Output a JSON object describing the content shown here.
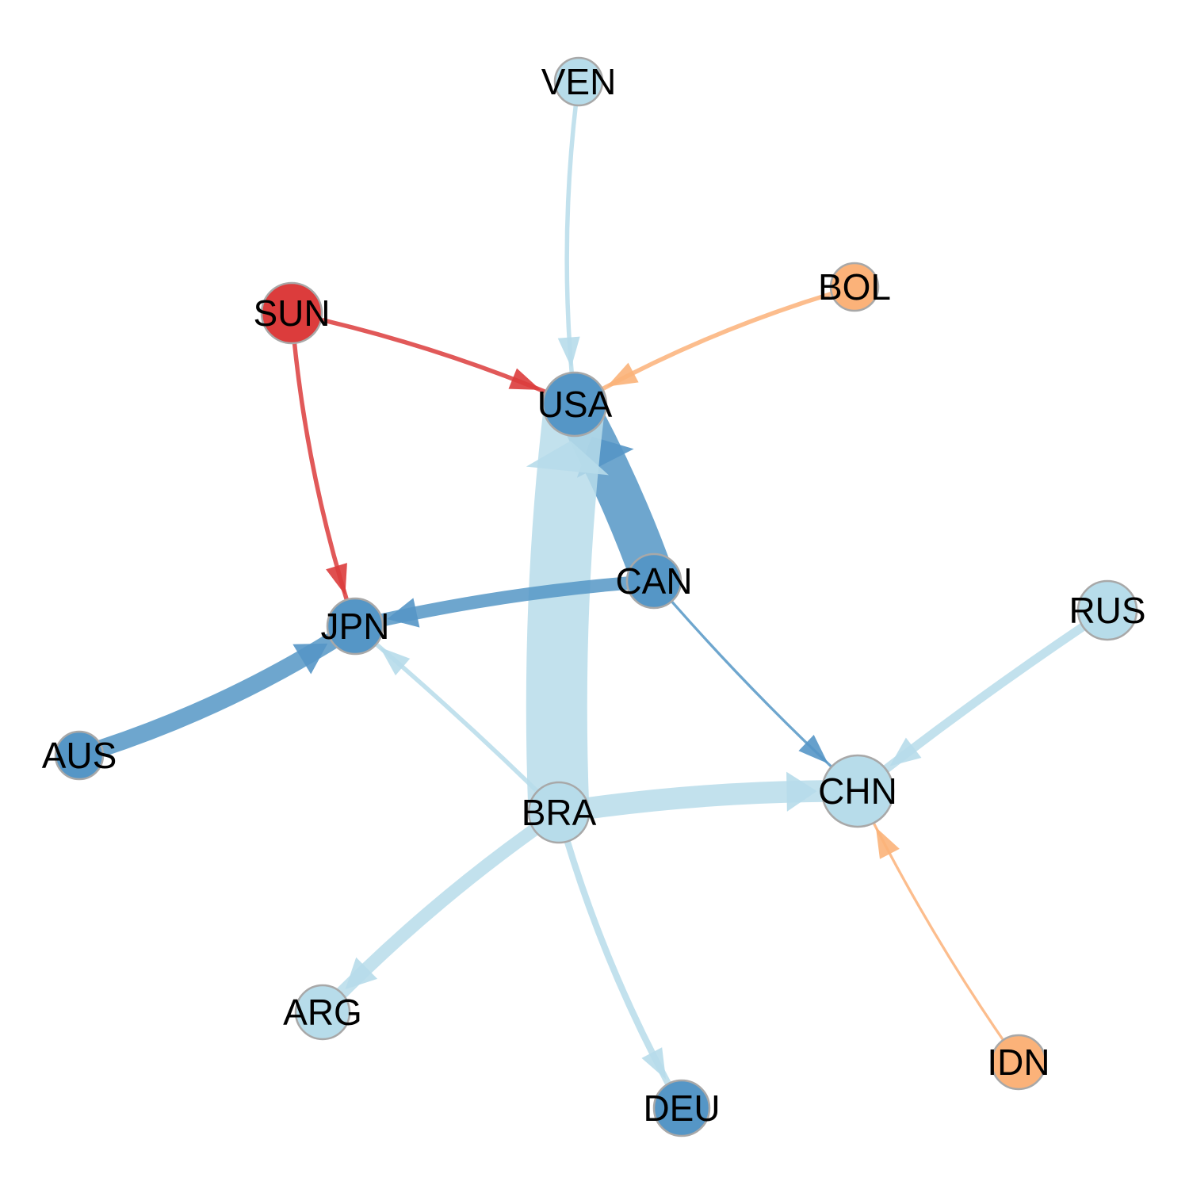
{
  "colors": {
    "light_blue": "#b7dcea",
    "mid_blue": "#5596c6",
    "red": "#dc3c3c",
    "orange": "#fbb279",
    "node_stroke": "#a8a8a8"
  },
  "nodes": [
    {
      "id": "VEN",
      "label": "VEN",
      "color": "light_blue"
    },
    {
      "id": "SUN",
      "label": "SUN",
      "color": "red"
    },
    {
      "id": "BOL",
      "label": "BOL",
      "color": "orange"
    },
    {
      "id": "USA",
      "label": "USA",
      "color": "mid_blue"
    },
    {
      "id": "CAN",
      "label": "CAN",
      "color": "mid_blue"
    },
    {
      "id": "RUS",
      "label": "RUS",
      "color": "light_blue"
    },
    {
      "id": "JPN",
      "label": "JPN",
      "color": "mid_blue"
    },
    {
      "id": "AUS",
      "label": "AUS",
      "color": "mid_blue"
    },
    {
      "id": "CHN",
      "label": "CHN",
      "color": "light_blue"
    },
    {
      "id": "BRA",
      "label": "BRA",
      "color": "light_blue"
    },
    {
      "id": "ARG",
      "label": "ARG",
      "color": "light_blue"
    },
    {
      "id": "IDN",
      "label": "IDN",
      "color": "orange"
    },
    {
      "id": "DEU",
      "label": "DEU",
      "color": "mid_blue"
    }
  ],
  "edges": [
    {
      "from": "VEN",
      "to": "USA",
      "color": "light_blue",
      "weight": 1
    },
    {
      "from": "SUN",
      "to": "USA",
      "color": "red",
      "weight": 1
    },
    {
      "from": "SUN",
      "to": "JPN",
      "color": "red",
      "weight": 1
    },
    {
      "from": "BOL",
      "to": "USA",
      "color": "orange",
      "weight": 1
    },
    {
      "from": "CAN",
      "to": "USA",
      "color": "mid_blue",
      "weight": 10
    },
    {
      "from": "BRA",
      "to": "USA",
      "color": "light_blue",
      "weight": 14
    },
    {
      "from": "CAN",
      "to": "JPN",
      "color": "mid_blue",
      "weight": 3
    },
    {
      "from": "CAN",
      "to": "CHN",
      "color": "mid_blue",
      "weight": 0.6
    },
    {
      "from": "AUS",
      "to": "JPN",
      "color": "mid_blue",
      "weight": 4
    },
    {
      "from": "BRA",
      "to": "JPN",
      "color": "light_blue",
      "weight": 1
    },
    {
      "from": "BRA",
      "to": "CHN",
      "color": "light_blue",
      "weight": 5
    },
    {
      "from": "RUS",
      "to": "CHN",
      "color": "light_blue",
      "weight": 2
    },
    {
      "from": "IDN",
      "to": "CHN",
      "color": "orange",
      "weight": 0.6
    },
    {
      "from": "BRA",
      "to": "ARG",
      "color": "light_blue",
      "weight": 3
    },
    {
      "from": "BRA",
      "to": "DEU",
      "color": "light_blue",
      "weight": 1.5
    }
  ]
}
